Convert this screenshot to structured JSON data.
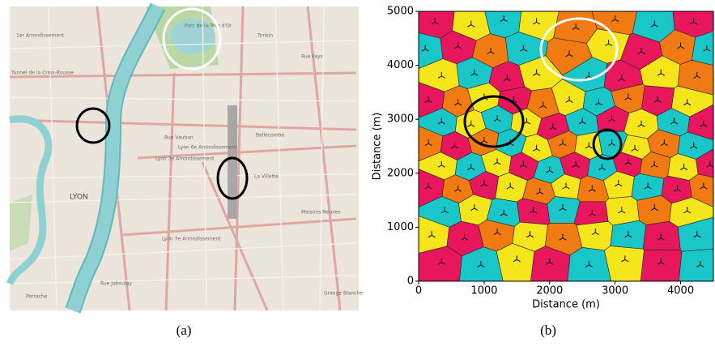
{
  "panel_a": {
    "caption": "(a)",
    "labels": [
      "Parc de la Tête d'Or",
      "Tonkin",
      "Rue Fays",
      "1er Arrondissement",
      "Tunnel de la Croix-Rousse",
      "Rue Vauban",
      "Lyon 6e Arrondissement",
      "Lyon 3e Arrondissement",
      "Bellecombe",
      "La Villette",
      "LYON",
      "Rue Jaboulay",
      "Lyon 7e Arrondissement",
      "Maisons Neuves",
      "Perrache",
      "Grange Blanche"
    ]
  },
  "chart_data": {
    "type": "voronoi",
    "caption": "(b)",
    "xlabel": "Distance (m)",
    "ylabel": "Distance (m)",
    "xlim": [
      0,
      4500
    ],
    "ylim": [
      0,
      5000
    ],
    "xticks": [
      0,
      1000,
      2000,
      3000,
      4000
    ],
    "yticks": [
      0,
      1000,
      2000,
      3000,
      4000,
      5000
    ],
    "marker_color": "#1a1a1a",
    "x": [
      250,
      800,
      1300,
      1800,
      2400,
      3000,
      3600,
      4200,
      100,
      600,
      1100,
      1600,
      2300,
      2900,
      3400,
      4000,
      4400,
      350,
      850,
      1350,
      1800,
      2600,
      3100,
      3700,
      4250,
      150,
      600,
      1000,
      1450,
      1900,
      2300,
      2750,
      3200,
      3650,
      4100,
      350,
      800,
      1200,
      1650,
      2050,
      2500,
      2950,
      3400,
      3900,
      4350,
      150,
      550,
      1000,
      1400,
      1800,
      2200,
      2600,
      2950,
      3300,
      3750,
      4200,
      350,
      800,
      1200,
      1600,
      2000,
      2400,
      2800,
      3200,
      3600,
      4050,
      4450,
      150,
      600,
      1000,
      1400,
      1850,
      2250,
      2650,
      3050,
      3500,
      3950,
      4350,
      400,
      850,
      1300,
      1750,
      2200,
      2650,
      3100,
      3600,
      4100,
      200,
      700,
      1200,
      1700,
      2200,
      2700,
      3200,
      3700,
      4250,
      350,
      950,
      1500,
      2000,
      2600,
      3150,
      3700,
      4300
    ],
    "y": [
      4800,
      4750,
      4850,
      4800,
      4700,
      4850,
      4750,
      4800,
      4300,
      4350,
      4250,
      4300,
      4200,
      4400,
      4250,
      4350,
      4300,
      3800,
      3850,
      3750,
      3850,
      3800,
      3750,
      3850,
      3800,
      3350,
      3300,
      3400,
      3350,
      3250,
      3350,
      3300,
      3400,
      3350,
      3300,
      2950,
      2900,
      3000,
      2950,
      2850,
      2950,
      3000,
      2900,
      2950,
      2900,
      2550,
      2500,
      2600,
      2550,
      2450,
      2550,
      2500,
      2550,
      2450,
      2550,
      2500,
      2150,
      2100,
      2200,
      2150,
      2050,
      2150,
      2100,
      2200,
      2150,
      2100,
      2150,
      1750,
      1700,
      1800,
      1750,
      1650,
      1750,
      1700,
      1800,
      1750,
      1700,
      1750,
      1300,
      1350,
      1250,
      1300,
      1350,
      1250,
      1300,
      1350,
      1300,
      850,
      800,
      900,
      850,
      800,
      900,
      850,
      800,
      850,
      350,
      300,
      400,
      350,
      300,
      400,
      350,
      300
    ],
    "colors": [
      "#e8175d",
      "#f5e61c",
      "#19c6c8",
      "#f5e61c",
      "#f27a12",
      "#f27a12",
      "#19c6c8",
      "#e8175d",
      "#19c6c8",
      "#e8175d",
      "#f27a12",
      "#19c6c8",
      "#f27a12",
      "#f5e61c",
      "#e8175d",
      "#f27a12",
      "#19c6c8",
      "#f5e61c",
      "#19c6c8",
      "#e8175d",
      "#f5e61c",
      "#19c6c8",
      "#e8175d",
      "#f5e61c",
      "#f27a12",
      "#e8175d",
      "#f27a12",
      "#f5e61c",
      "#e8175d",
      "#f27a12",
      "#f5e61c",
      "#19c6c8",
      "#f27a12",
      "#e8175d",
      "#f5e61c",
      "#19c6c8",
      "#f5e61c",
      "#19c6c8",
      "#f5e61c",
      "#e8175d",
      "#19c6c8",
      "#e8175d",
      "#f5e61c",
      "#19c6c8",
      "#e8175d",
      "#f27a12",
      "#e8175d",
      "#f27a12",
      "#19c6c8",
      "#f5e61c",
      "#f27a12",
      "#f5e61c",
      "#19c6c8",
      "#f5e61c",
      "#f27a12",
      "#19c6c8",
      "#f5e61c",
      "#19c6c8",
      "#f5e61c",
      "#e8175d",
      "#19c6c8",
      "#e8175d",
      "#19c6c8",
      "#e8175d",
      "#f27a12",
      "#f5e61c",
      "#e8175d",
      "#e8175d",
      "#f27a12",
      "#e8175d",
      "#f5e61c",
      "#f27a12",
      "#f5e61c",
      "#f27a12",
      "#f5e61c",
      "#19c6c8",
      "#e8175d",
      "#f27a12",
      "#19c6c8",
      "#f5e61c",
      "#19c6c8",
      "#e8175d",
      "#19c6c8",
      "#e8175d",
      "#f5e61c",
      "#f27a12",
      "#f5e61c",
      "#f5e61c",
      "#e8175d",
      "#f27a12",
      "#f5e61c",
      "#f27a12",
      "#f5e61c",
      "#19c6c8",
      "#e8175d",
      "#19c6c8",
      "#e8175d",
      "#19c6c8",
      "#f5e61c",
      "#e8175d",
      "#19c6c8",
      "#f5e61c",
      "#e8175d",
      "#19c6c8"
    ]
  }
}
